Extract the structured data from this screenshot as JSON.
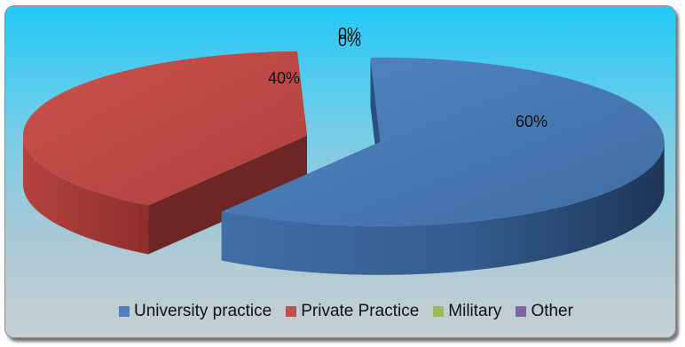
{
  "chart_data": {
    "type": "pie",
    "style": "3d-exploded",
    "categories": [
      "University practice",
      "Private Practice",
      "Military",
      "Other"
    ],
    "values": [
      60,
      40,
      0,
      0
    ],
    "data_labels": [
      "60%",
      "40%",
      "0%",
      "0%"
    ],
    "colors": [
      "#4f81bd",
      "#c0504d",
      "#9bbb59",
      "#8064a2"
    ],
    "legend_position": "bottom"
  }
}
